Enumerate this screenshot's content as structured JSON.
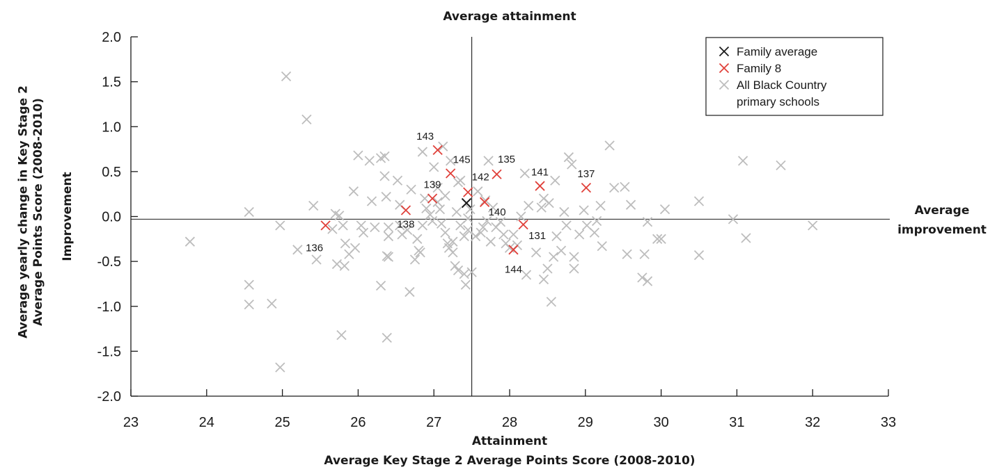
{
  "chart_data": {
    "type": "scatter",
    "title": "Average attainment",
    "xlabel": "Attainment",
    "xlabel_sub": "Average Key Stage 2 Average Points Score (2008-2010)",
    "ylabel": "Improvement",
    "ylabel_sub": "Average yearly change in Key Stage 2 Average Points Score (2008-2010)",
    "right_label": [
      "Average",
      "improvement"
    ],
    "xlim": [
      23,
      33
    ],
    "ylim": [
      -2.0,
      2.0
    ],
    "x_ticks": [
      "23",
      "24",
      "25",
      "26",
      "27",
      "28",
      "29",
      "30",
      "31",
      "32",
      "33"
    ],
    "y_ticks": [
      "2.0",
      "1.5",
      "1.0",
      "0.5",
      "0.0",
      "-0.5",
      "-1.0",
      "-1.5",
      "-2.0"
    ],
    "reference_lines": {
      "x": 27.5,
      "y": -0.03
    },
    "legend": {
      "position": "top-right",
      "entries": [
        {
          "marker": "X",
          "label": "Family average",
          "color": "#1a1a1a"
        },
        {
          "marker": "X",
          "label": "Family 8",
          "color": "#e0403a"
        },
        {
          "marker": "X",
          "label": "All Black Country",
          "label2": "primary schools",
          "color": "#bdbdbd"
        }
      ]
    },
    "series": [
      {
        "name": "All Black Country primary schools",
        "color": "#bdbdbd",
        "points": [
          [
            23.78,
            -0.28
          ],
          [
            24.56,
            0.05
          ],
          [
            24.56,
            -0.76
          ],
          [
            24.56,
            -0.98
          ],
          [
            24.86,
            -0.97
          ],
          [
            24.97,
            -0.1
          ],
          [
            24.97,
            -1.68
          ],
          [
            25.05,
            1.56
          ],
          [
            25.2,
            -0.37
          ],
          [
            25.32,
            1.08
          ],
          [
            25.41,
            0.12
          ],
          [
            25.45,
            -0.48
          ],
          [
            25.66,
            -0.14
          ],
          [
            25.7,
            0.03
          ],
          [
            25.72,
            -0.53
          ],
          [
            25.78,
            -1.32
          ],
          [
            25.82,
            -0.55
          ],
          [
            25.75,
            0.01
          ],
          [
            25.8,
            -0.1
          ],
          [
            25.83,
            -0.3
          ],
          [
            25.88,
            -0.42
          ],
          [
            25.94,
            0.28
          ],
          [
            25.96,
            -0.35
          ],
          [
            26.0,
            0.68
          ],
          [
            26.04,
            -0.1
          ],
          [
            26.07,
            -0.18
          ],
          [
            26.15,
            0.62
          ],
          [
            26.18,
            0.17
          ],
          [
            26.22,
            -0.12
          ],
          [
            26.3,
            -0.77
          ],
          [
            26.3,
            0.65
          ],
          [
            26.35,
            0.67
          ],
          [
            26.35,
            0.45
          ],
          [
            26.37,
            0.22
          ],
          [
            26.38,
            -0.44
          ],
          [
            26.4,
            -0.45
          ],
          [
            26.4,
            -0.12
          ],
          [
            26.38,
            -1.35
          ],
          [
            26.4,
            -0.22
          ],
          [
            26.52,
            0.4
          ],
          [
            26.55,
            0.13
          ],
          [
            26.55,
            -0.1
          ],
          [
            26.58,
            -0.2
          ],
          [
            26.65,
            -0.15
          ],
          [
            26.68,
            -0.84
          ],
          [
            26.7,
            0.3
          ],
          [
            26.75,
            -0.48
          ],
          [
            26.78,
            -0.25
          ],
          [
            26.8,
            -0.38
          ],
          [
            26.82,
            -0.4
          ],
          [
            26.85,
            -0.1
          ],
          [
            26.85,
            0.72
          ],
          [
            26.88,
            0.2
          ],
          [
            26.9,
            0.09
          ],
          [
            26.95,
            0.02
          ],
          [
            26.98,
            -0.05
          ],
          [
            27.0,
            0.55
          ],
          [
            27.05,
            0.16
          ],
          [
            27.05,
            0.32
          ],
          [
            27.08,
            0.08
          ],
          [
            27.1,
            -0.08
          ],
          [
            27.12,
            0.78
          ],
          [
            27.15,
            0.23
          ],
          [
            27.15,
            -0.18
          ],
          [
            27.18,
            -0.3
          ],
          [
            27.2,
            -0.35
          ],
          [
            27.22,
            0.62
          ],
          [
            27.25,
            -0.4
          ],
          [
            27.25,
            -0.28
          ],
          [
            27.28,
            -0.55
          ],
          [
            27.3,
            0.05
          ],
          [
            27.32,
            -0.6
          ],
          [
            27.32,
            0.38
          ],
          [
            27.35,
            0.4
          ],
          [
            27.35,
            -0.1
          ],
          [
            27.4,
            -0.22
          ],
          [
            27.4,
            -0.64
          ],
          [
            27.42,
            -0.76
          ],
          [
            27.45,
            -0.02
          ],
          [
            27.45,
            -0.15
          ],
          [
            27.48,
            0.08
          ],
          [
            27.5,
            -0.62
          ],
          [
            27.55,
            -0.22
          ],
          [
            27.58,
            0.28
          ],
          [
            27.62,
            -0.18
          ],
          [
            27.65,
            -0.12
          ],
          [
            27.68,
            0.18
          ],
          [
            27.7,
            -0.05
          ],
          [
            27.72,
            0.62
          ],
          [
            27.75,
            -0.28
          ],
          [
            27.78,
            0.1
          ],
          [
            27.82,
            -0.12
          ],
          [
            27.88,
            -0.06
          ],
          [
            27.92,
            -0.2
          ],
          [
            27.95,
            -0.3
          ],
          [
            28.0,
            -0.35
          ],
          [
            28.05,
            -0.2
          ],
          [
            28.1,
            -0.32
          ],
          [
            28.15,
            0.0
          ],
          [
            28.2,
            0.48
          ],
          [
            28.22,
            -0.65
          ],
          [
            28.25,
            0.12
          ],
          [
            28.35,
            -0.4
          ],
          [
            28.42,
            0.1
          ],
          [
            28.45,
            0.2
          ],
          [
            28.45,
            -0.7
          ],
          [
            28.5,
            -0.58
          ],
          [
            28.52,
            0.15
          ],
          [
            28.55,
            -0.95
          ],
          [
            28.58,
            -0.45
          ],
          [
            28.6,
            0.4
          ],
          [
            28.62,
            -0.22
          ],
          [
            28.68,
            -0.38
          ],
          [
            28.72,
            0.05
          ],
          [
            28.75,
            -0.1
          ],
          [
            28.78,
            0.66
          ],
          [
            28.82,
            0.58
          ],
          [
            28.85,
            -0.45
          ],
          [
            28.85,
            -0.58
          ],
          [
            28.92,
            -0.2
          ],
          [
            28.98,
            0.07
          ],
          [
            29.02,
            -0.1
          ],
          [
            29.12,
            -0.18
          ],
          [
            29.15,
            -0.05
          ],
          [
            29.2,
            0.12
          ],
          [
            29.22,
            -0.33
          ],
          [
            29.32,
            0.79
          ],
          [
            29.38,
            0.32
          ],
          [
            29.52,
            0.33
          ],
          [
            29.55,
            -0.42
          ],
          [
            29.6,
            0.13
          ],
          [
            29.75,
            -0.68
          ],
          [
            29.78,
            -0.42
          ],
          [
            29.82,
            -0.06
          ],
          [
            29.82,
            -0.72
          ],
          [
            29.95,
            -0.25
          ],
          [
            30.0,
            -0.25
          ],
          [
            30.05,
            0.08
          ],
          [
            30.5,
            0.17
          ],
          [
            30.5,
            -0.43
          ],
          [
            30.95,
            -0.03
          ],
          [
            31.08,
            0.62
          ],
          [
            31.12,
            -0.24
          ],
          [
            31.58,
            0.57
          ],
          [
            32.0,
            -0.1
          ]
        ]
      },
      {
        "name": "Family 8",
        "color": "#e0403a",
        "points": [
          {
            "x": 25.57,
            "y": -0.1,
            "label": "136"
          },
          {
            "x": 26.63,
            "y": 0.07,
            "label": "138"
          },
          {
            "x": 26.98,
            "y": 0.2,
            "label": "139"
          },
          {
            "x": 27.05,
            "y": 0.74,
            "label": "143"
          },
          {
            "x": 27.22,
            "y": 0.48,
            "label": "145"
          },
          {
            "x": 27.45,
            "y": 0.27,
            "label": "142"
          },
          {
            "x": 27.67,
            "y": 0.16,
            "label": "140"
          },
          {
            "x": 27.83,
            "y": 0.47,
            "label": "135"
          },
          {
            "x": 28.05,
            "y": -0.37,
            "label": "144"
          },
          {
            "x": 28.18,
            "y": -0.09,
            "label": "131"
          },
          {
            "x": 28.4,
            "y": 0.34,
            "label": "141"
          },
          {
            "x": 29.01,
            "y": 0.32,
            "label": "137"
          }
        ]
      },
      {
        "name": "Family average",
        "color": "#1a1a1a",
        "points": [
          [
            27.43,
            0.15
          ]
        ]
      }
    ]
  }
}
